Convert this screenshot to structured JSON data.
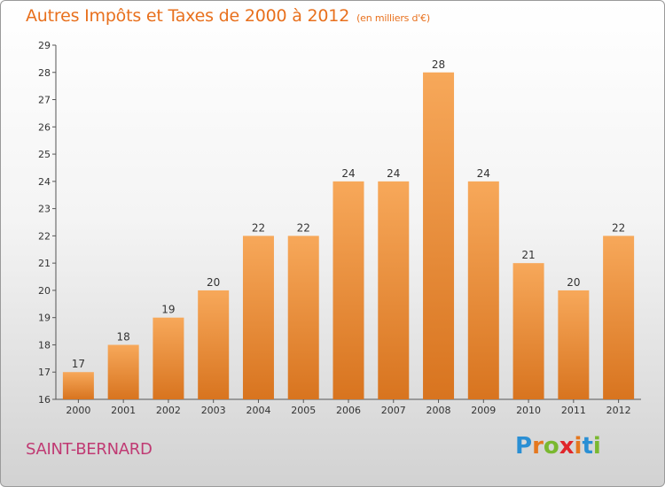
{
  "title": "Autres Impôts et Taxes de 2000 à 2012",
  "unit_note": "(en milliers d'€)",
  "place": "SAINT-BERNARD",
  "brand": {
    "letters": [
      "P",
      "r",
      "o",
      "x",
      "i",
      "t",
      "i"
    ],
    "colors": [
      "#2a8fd4",
      "#e5781f",
      "#7ab830",
      "#e0262b",
      "#e5781f",
      "#2a8fd4",
      "#7ab830"
    ]
  },
  "colors": {
    "bar": "#f29a45",
    "bar_dark": "#d8741f",
    "title": "#e8701d",
    "place": "#c03a73"
  },
  "chart_data": {
    "type": "bar",
    "categories": [
      "2000",
      "2001",
      "2002",
      "2003",
      "2004",
      "2005",
      "2006",
      "2007",
      "2008",
      "2009",
      "2010",
      "2011",
      "2012"
    ],
    "values": [
      17,
      18,
      19,
      20,
      22,
      22,
      24,
      24,
      28,
      24,
      21,
      20,
      22
    ],
    "data_labels": [
      "17",
      "18",
      "19",
      "20",
      "22",
      "22",
      "24",
      "24",
      "28",
      "24",
      "21",
      "20",
      "22"
    ],
    "yticks": [
      16,
      17,
      18,
      19,
      20,
      21,
      22,
      23,
      24,
      25,
      26,
      27,
      28,
      29
    ],
    "ylim": [
      16,
      29
    ],
    "title": "Autres Impôts et Taxes de 2000 à 2012",
    "xlabel": "",
    "ylabel": "",
    "grid": false
  }
}
